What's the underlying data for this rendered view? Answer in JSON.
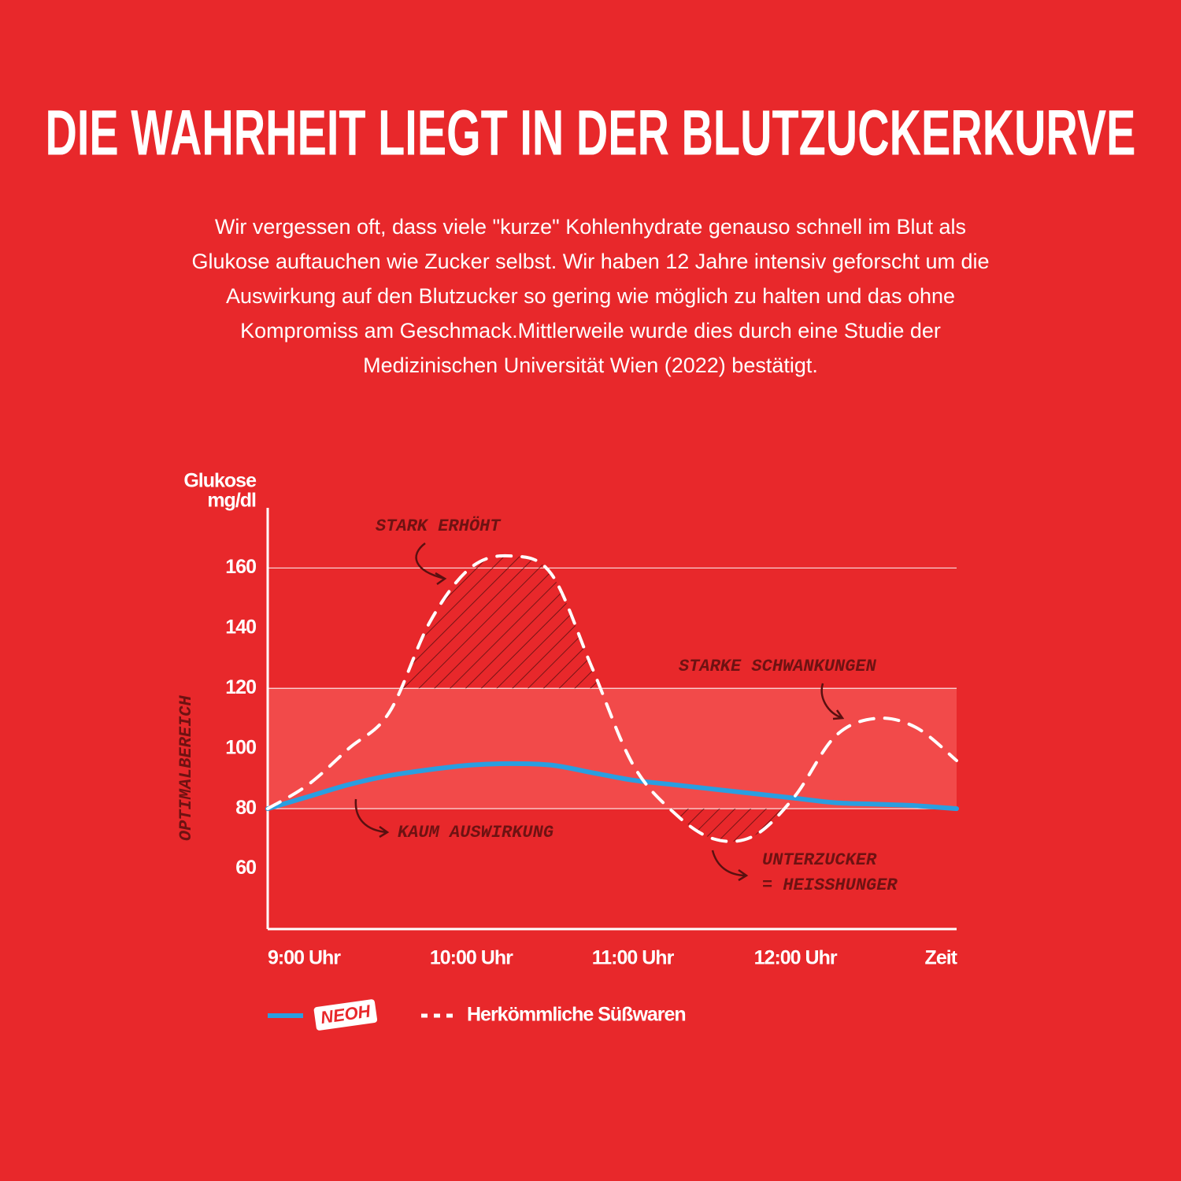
{
  "header": {
    "title": "DIE WAHRHEIT LIEGT IN DER BLUTZUCKERKURVE",
    "paragraph": [
      "Wir vergessen oft, dass viele \"kurze\" Kohlenhydrate genauso schnell im Blut als",
      "Glukose auftauchen wie Zucker selbst. Wir haben 12 Jahre intensiv geforscht um die",
      "Auswirkung auf den Blutzucker so gering wie möglich zu halten und das ohne",
      "Kompromiss am Geschmack.Mittlerweile wurde dies durch eine Studie der",
      "Medizinischen Universität Wien (2022) bestätigt."
    ]
  },
  "chart_data": {
    "type": "line",
    "y_label": [
      "Glukose",
      "mg/dl"
    ],
    "x_label": "Zeit",
    "optimal_range": [
      80,
      120
    ],
    "optimal_label": "OPTIMALBEREICH",
    "optimal_color": "#f24a4a",
    "reference_lines": [
      80,
      120,
      160
    ],
    "x": [
      9,
      9.25,
      9.5,
      9.75,
      10,
      10.25,
      10.5,
      10.75,
      11,
      11.25,
      11.5,
      11.75,
      12,
      12.25,
      12.5,
      12.75,
      13,
      13.25
    ],
    "series": [
      {
        "name": "NEOH",
        "color": "#2a9ee0",
        "style": "solid",
        "values": [
          80,
          84,
          88,
          91,
          93,
          94.5,
          95,
          94.5,
          92,
          89.5,
          88,
          86.5,
          85,
          83.5,
          82,
          81.5,
          81,
          80
        ]
      },
      {
        "name": "Herkömmliche Süßwaren",
        "color": "#ffffff",
        "style": "dashed",
        "values": [
          80,
          88,
          100,
          112,
          142,
          160,
          164,
          158,
          127,
          95,
          79,
          70,
          71,
          84,
          104,
          110,
          107,
          96
        ]
      }
    ],
    "xlim": [
      9,
      13.25
    ],
    "xticks": [
      {
        "value": 9,
        "label": "9:00 Uhr"
      },
      {
        "value": 10,
        "label": "10:00 Uhr"
      },
      {
        "value": 11,
        "label": "11:00 Uhr"
      },
      {
        "value": 12,
        "label": "12:00 Uhr"
      }
    ],
    "ylim": [
      40,
      180
    ],
    "yticks": [
      60,
      80,
      100,
      120,
      140,
      160
    ],
    "annotations": [
      [
        "STARK ERHÖHT"
      ],
      [
        "STARKE SCHWANKUNGEN"
      ],
      [
        "KAUM AUSWIRKUNG"
      ],
      [
        "UNTERZUCKER",
        "= HEISSHUNGER"
      ]
    ]
  }
}
